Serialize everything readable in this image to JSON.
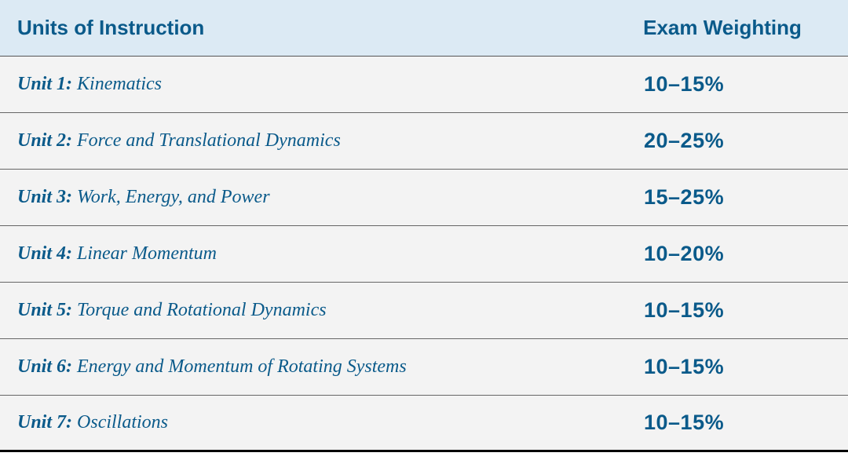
{
  "colors": {
    "header_bg": "#dceaf4",
    "row_bg": "#f3f3f3",
    "text": "#0a5a8a",
    "border": "#666666",
    "bottom_border": "#000000"
  },
  "header": {
    "col1": "Units of Instruction",
    "col2": "Exam Weighting"
  },
  "rows": [
    {
      "unit": "Unit 1:",
      "title": " Kinematics",
      "weight": "10–15%"
    },
    {
      "unit": "Unit 2:",
      "title": " Force and Translational Dynamics",
      "weight": "20–25%"
    },
    {
      "unit": "Unit 3:",
      "title": " Work, Energy, and Power",
      "weight": "15–25%"
    },
    {
      "unit": "Unit 4:",
      "title": " Linear Momentum",
      "weight": "10–20%"
    },
    {
      "unit": "Unit 5:",
      "title": " Torque and Rotational Dynamics",
      "weight": "10–15%"
    },
    {
      "unit": "Unit 6:",
      "title": " Energy and Momentum of Rotating Systems",
      "weight": "10–15%"
    },
    {
      "unit": "Unit 7:",
      "title": " Oscillations",
      "weight": "10–15%"
    }
  ]
}
